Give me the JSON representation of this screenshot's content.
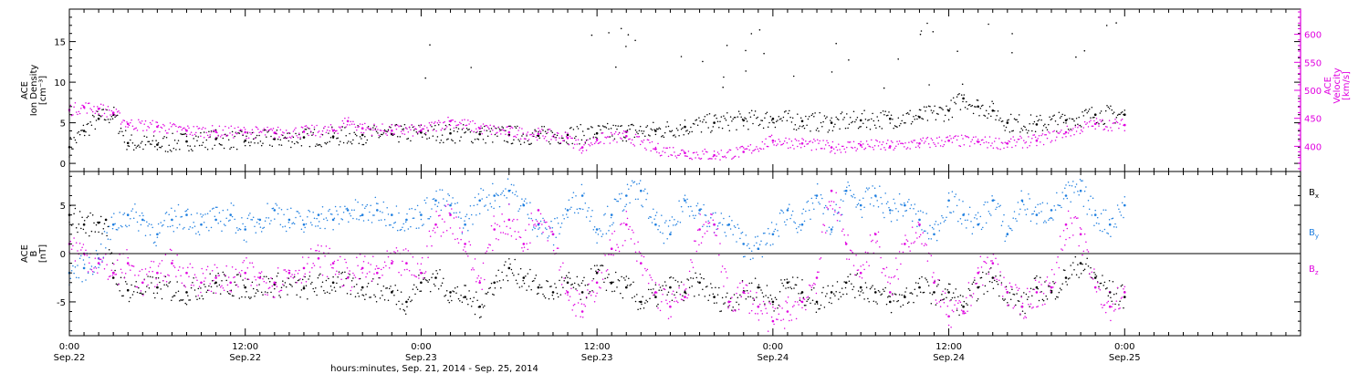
{
  "colors": {
    "black": "#000000",
    "magenta": "#e000e0",
    "blue": "#1f7fe0"
  },
  "xaxis": {
    "label": "hours:minutes, Sep. 21, 2014 - Sep. 25, 2014",
    "range_hours": [
      0,
      84
    ],
    "ticks": [
      {
        "hour": 0,
        "time": "0:00",
        "date": "Sep.22"
      },
      {
        "hour": 12,
        "time": "12:00",
        "date": "Sep.22"
      },
      {
        "hour": 24,
        "time": "0:00",
        "date": "Sep.23"
      },
      {
        "hour": 36,
        "time": "12:00",
        "date": "Sep.23"
      },
      {
        "hour": 48,
        "time": "0:00",
        "date": "Sep.24"
      },
      {
        "hour": 60,
        "time": "12:00",
        "date": "Sep.24"
      },
      {
        "hour": 72,
        "time": "0:00",
        "date": "Sep.25"
      }
    ]
  },
  "chart_data": [
    {
      "type": "scatter",
      "title": "",
      "xlabel": "hours:minutes, Sep. 21, 2014 - Sep. 25, 2014",
      "ylabel": "ACE Ion Density [cm⁻³]",
      "ylabel_lines": [
        "ACE",
        "Ion Density",
        "[cm⁻³]"
      ],
      "ylim": [
        -1,
        19
      ],
      "yticks": [
        0,
        5,
        10,
        15
      ],
      "y2label": "ACE Velocity [km/s]",
      "y2label_lines": [
        "ACE",
        "Velocity",
        "[km/s]"
      ],
      "y2lim": [
        355,
        645
      ],
      "y2ticks": [
        400,
        450,
        500,
        550,
        600
      ],
      "series": [
        {
          "axis": "left",
          "color": "#000000",
          "x": [
            0,
            1,
            2,
            3,
            4,
            6,
            8,
            10,
            12,
            14,
            16,
            18,
            20,
            22,
            24,
            26,
            28,
            30,
            32,
            34,
            36,
            38,
            40,
            42,
            44,
            46,
            48,
            50,
            52,
            54,
            56,
            58,
            60,
            61,
            62,
            63,
            64,
            66,
            68,
            70,
            72
          ],
          "values": [
            2,
            4,
            5.5,
            6,
            2.5,
            2.3,
            2.7,
            3,
            2.8,
            3,
            3.2,
            3.3,
            3.5,
            3.6,
            3.8,
            3.7,
            3.6,
            3.5,
            3.4,
            3.5,
            3.7,
            3.9,
            4,
            4.5,
            5,
            5.3,
            5.5,
            5.2,
            5,
            5.3,
            5.5,
            5.7,
            6.5,
            8,
            7,
            6.5,
            5,
            4.8,
            5.3,
            6,
            6
          ]
        },
        {
          "axis": "right",
          "color": "#e000e0",
          "x": [
            0,
            1,
            2,
            3,
            4,
            6,
            8,
            10,
            12,
            14,
            16,
            18,
            19,
            20,
            22,
            24,
            26,
            28,
            30,
            32,
            34,
            35,
            36,
            38,
            40,
            42,
            44,
            46,
            48,
            50,
            52,
            54,
            56,
            58,
            60,
            62,
            64,
            66,
            68,
            70,
            72
          ],
          "values": [
            465,
            470,
            467,
            460,
            440,
            435,
            428,
            426,
            425,
            424,
            426,
            428,
            445,
            432,
            428,
            428,
            445,
            432,
            425,
            422,
            415,
            398,
            412,
            418,
            395,
            388,
            384,
            390,
            410,
            405,
            398,
            402,
            400,
            405,
            410,
            408,
            405,
            410,
            425,
            440,
            438
          ]
        }
      ]
    },
    {
      "type": "scatter",
      "title": "",
      "xlabel": "hours:minutes, Sep. 21, 2014 - Sep. 25, 2014",
      "ylabel": "ACE B [nT]",
      "ylabel_lines": [
        "ACE",
        "B",
        "[nT]"
      ],
      "ylim": [
        -8.5,
        8.5
      ],
      "yticks": [
        -5,
        0,
        5
      ],
      "zero_line": true,
      "legend_position": "right",
      "series": [
        {
          "name": "Bx",
          "label_base": "B",
          "label_sub": "x",
          "color": "#000000",
          "x": [
            0,
            1,
            2,
            2.5,
            3,
            4,
            6,
            8,
            10,
            12,
            14,
            16,
            18,
            20,
            22,
            23,
            24,
            25,
            26,
            27,
            28,
            29,
            30,
            31,
            32,
            33,
            34,
            35,
            36,
            37,
            38,
            39,
            40,
            41,
            42,
            43,
            44,
            45,
            46,
            47,
            48,
            49,
            50,
            51,
            52,
            53,
            54,
            55,
            56,
            57,
            58,
            59,
            60,
            61,
            62,
            63,
            64,
            65,
            66,
            67,
            68,
            69,
            70,
            71,
            72
          ],
          "values": [
            4,
            3,
            3.2,
            3.5,
            -2.5,
            -3.8,
            -3.5,
            -4,
            -3,
            -3.5,
            -3.2,
            -3.6,
            -3,
            -3.5,
            -4,
            -5,
            -3,
            -2.5,
            -4,
            -4.5,
            -5.5,
            -3,
            -1.5,
            -2.5,
            -3.5,
            -4,
            -3,
            -4,
            -2,
            -3,
            -3.5,
            -5,
            -4.5,
            -3.5,
            -4,
            -3,
            -4.5,
            -5,
            -4,
            -3.5,
            -5,
            -3,
            -4,
            -5,
            -4,
            -3,
            -3.5,
            -4,
            -5,
            -4.5,
            -3.5,
            -4,
            -4,
            -5.5,
            -3.5,
            -2.5,
            -4,
            -5.5,
            -3.5,
            -4,
            -2.5,
            -1,
            -2.5,
            -4,
            -4.5
          ]
        },
        {
          "name": "By",
          "label_base": "B",
          "label_sub": "y",
          "color": "#1f7fe0",
          "x": [
            0,
            1,
            2,
            3,
            4,
            5,
            6,
            7,
            8,
            9,
            10,
            11,
            12,
            13,
            14,
            15,
            16,
            17,
            18,
            19,
            20,
            21,
            22,
            23,
            24,
            25,
            26,
            27,
            28,
            29,
            30,
            31,
            32,
            33,
            34,
            35,
            36,
            37,
            38,
            39,
            40,
            41,
            42,
            43,
            44,
            45,
            46,
            47,
            48,
            49,
            50,
            51,
            52,
            53,
            54,
            55,
            56,
            57,
            58,
            59,
            60,
            61,
            62,
            63,
            64,
            65,
            66,
            67,
            68,
            69,
            70,
            71,
            72
          ],
          "values": [
            -2,
            -1.5,
            -0.5,
            3,
            4,
            3.5,
            2,
            3.5,
            4,
            3,
            3.5,
            4,
            2.5,
            3.5,
            4.5,
            3.5,
            3,
            4,
            3.5,
            4.5,
            4,
            4.5,
            4,
            3.5,
            4,
            5.5,
            5,
            3,
            5.5,
            6,
            6.5,
            5,
            3,
            2,
            4.5,
            6,
            2.5,
            4,
            6,
            6.5,
            3,
            2,
            5.5,
            4.5,
            3,
            3,
            1,
            0.5,
            2,
            4.5,
            3,
            6,
            2.5,
            6.5,
            5,
            6,
            4.5,
            5,
            3.5,
            2,
            5.5,
            4,
            3,
            5.5,
            2,
            5.5,
            4,
            4.5,
            6,
            6.5,
            4,
            3,
            5
          ]
        },
        {
          "name": "Bz",
          "label_base": "B",
          "label_sub": "z",
          "color": "#e000e0",
          "x": [
            0,
            1,
            2,
            3,
            4,
            5,
            6,
            7,
            8,
            9,
            10,
            11,
            12,
            13,
            14,
            15,
            16,
            17,
            18,
            19,
            20,
            21,
            22,
            23,
            24,
            25,
            26,
            27,
            28,
            29,
            30,
            31,
            32,
            33,
            34,
            35,
            36,
            37,
            38,
            39,
            40,
            41,
            42,
            43,
            44,
            45,
            46,
            47,
            48,
            49,
            50,
            51,
            52,
            53,
            54,
            55,
            56,
            57,
            58,
            59,
            60,
            61,
            62,
            63,
            64,
            65,
            66,
            67,
            68,
            69,
            70,
            71,
            72
          ],
          "values": [
            1,
            0,
            -1,
            -2,
            -1,
            -3,
            -2,
            -1,
            -2,
            -3,
            -2.5,
            -3,
            -2,
            -2.5,
            -3,
            -2,
            -1.5,
            -0.5,
            -1,
            -2.5,
            -1.5,
            -2,
            -1,
            -1,
            -2,
            3,
            4,
            1,
            -3,
            2.5,
            3.5,
            1,
            4.5,
            2,
            -4,
            -6,
            -3,
            0.5,
            3,
            -1,
            -4,
            -5.5,
            -4.5,
            2.5,
            3,
            -5,
            -4,
            -5.5,
            -7,
            -6,
            -5,
            -2.5,
            6.5,
            1,
            -2,
            2,
            -4,
            1,
            3,
            -3,
            -6.5,
            -6,
            -2,
            -1,
            -4,
            -5.5,
            -4,
            -3.5,
            3,
            2,
            -3.5,
            -5.5,
            -4
          ]
        }
      ]
    }
  ]
}
